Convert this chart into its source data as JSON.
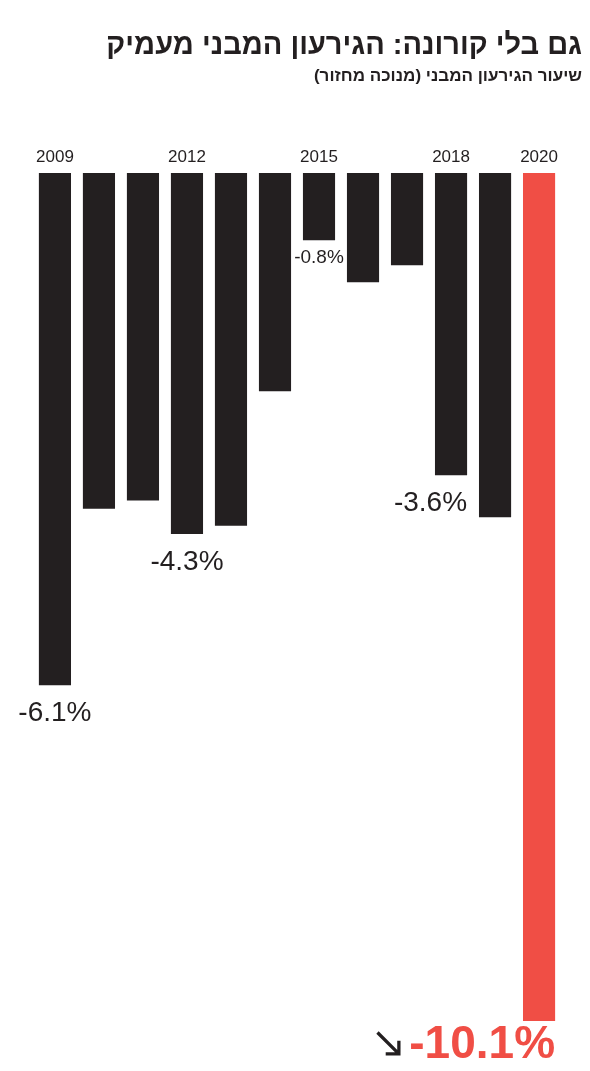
{
  "chart_data": {
    "type": "bar",
    "title": "גם בלי קורונה: הגירעון המבני מעמיק",
    "subtitle": "שיעור הגירעון המבני (מנוכה מחזור)",
    "categories": [
      "2009",
      null,
      null,
      "2012",
      null,
      null,
      "2015",
      null,
      null,
      "2018",
      null,
      "2020"
    ],
    "values": [
      -6.1,
      -4.0,
      -3.9,
      -4.3,
      -4.2,
      -2.6,
      -0.8,
      -1.3,
      -1.1,
      -3.6,
      -4.1,
      -10.1
    ],
    "colors": [
      "#231f20",
      "#231f20",
      "#231f20",
      "#231f20",
      "#231f20",
      "#231f20",
      "#231f20",
      "#231f20",
      "#231f20",
      "#231f20",
      "#231f20",
      "#f04e45"
    ],
    "value_labels": [
      "-6.1%",
      null,
      null,
      "-4.3%",
      null,
      null,
      "-0.8%",
      null,
      null,
      "-3.6%",
      null,
      "-10.1%"
    ]
  }
}
